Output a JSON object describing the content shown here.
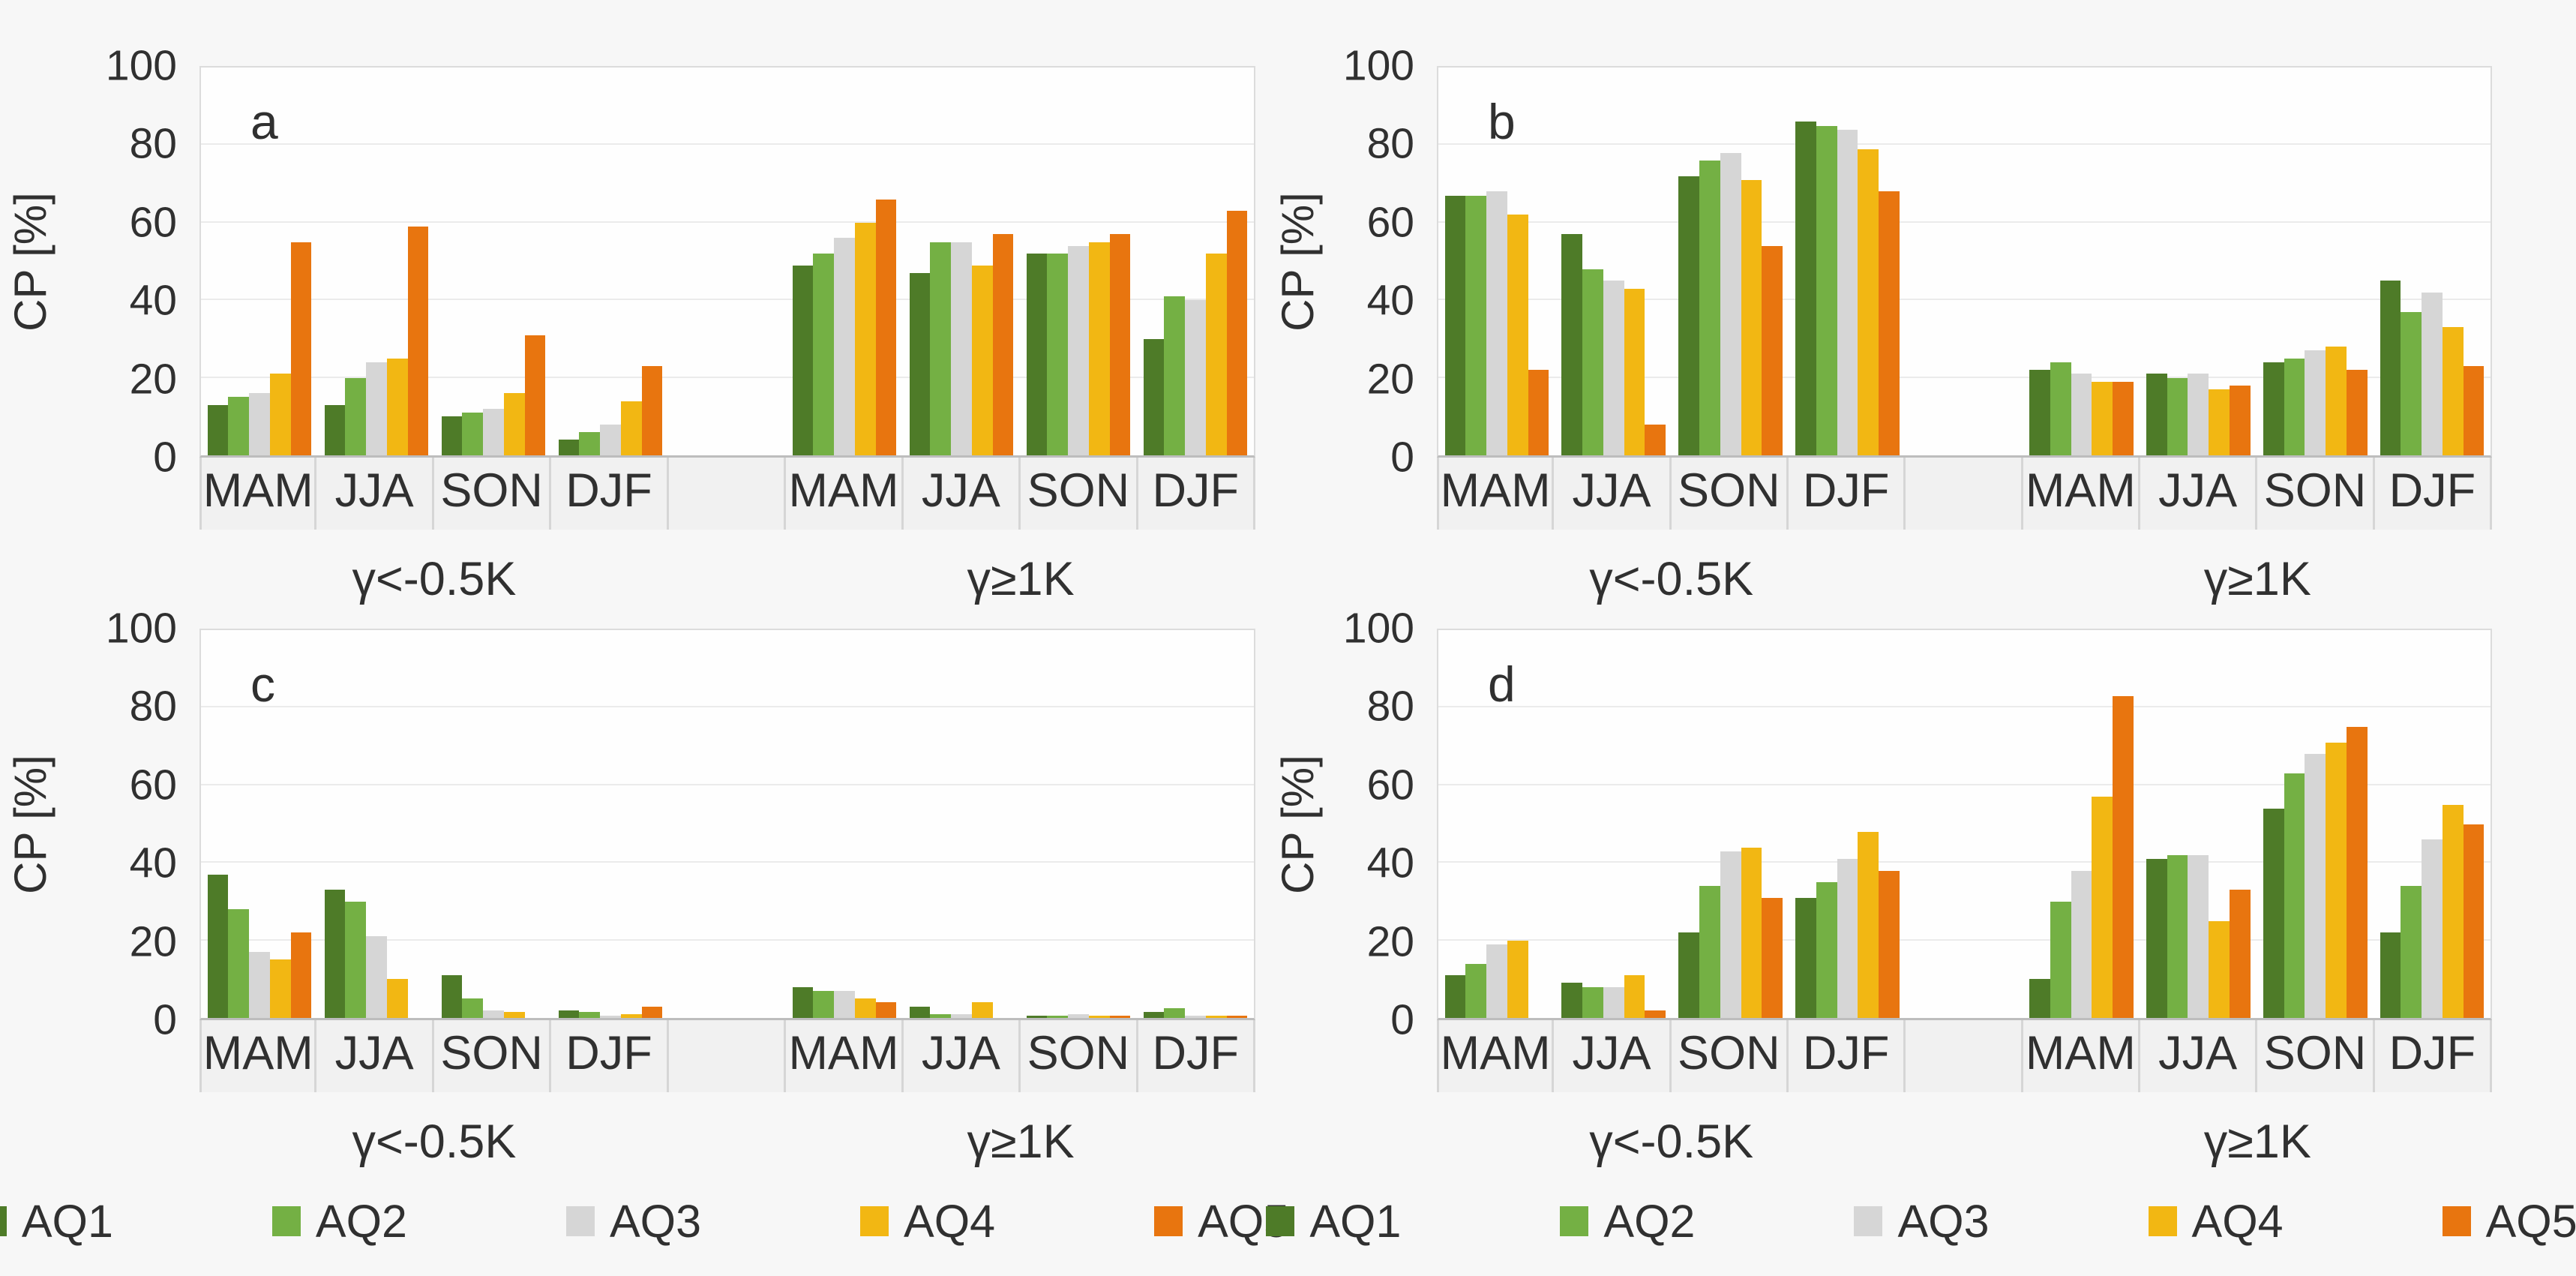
{
  "figure": {
    "y_axis_title": "CP [%]",
    "y_ticks": [
      0,
      20,
      40,
      60,
      80,
      100
    ],
    "ylim": [
      0,
      100
    ],
    "seasons": [
      "MAM",
      "JJA",
      "SON",
      "DJF"
    ],
    "conditions": [
      "γ<-0.5K",
      "γ≥1K"
    ],
    "series_names": [
      "AQ1",
      "AQ2",
      "AQ3",
      "AQ4",
      "AQ5"
    ],
    "series_colors": {
      "AQ1": "#4e7b28",
      "AQ2": "#74b044",
      "AQ3": "#d6d6d6",
      "AQ4": "#f2b713",
      "AQ5": "#e8750f"
    },
    "grid_color": "#ebebeb",
    "background": "#f7f7f7"
  },
  "legend": {
    "items": [
      {
        "label": "AQ1",
        "color": "#4e7b28"
      },
      {
        "label": "AQ2",
        "color": "#74b044"
      },
      {
        "label": "AQ3",
        "color": "#d6d6d6"
      },
      {
        "label": "AQ4",
        "color": "#f2b713"
      },
      {
        "label": "AQ5",
        "color": "#e8750f"
      }
    ]
  },
  "chart_data": [
    {
      "panel": "a",
      "type": "bar",
      "ylabel": "CP [%]",
      "ylim": [
        0,
        100
      ],
      "categories": [
        "MAM",
        "JJA",
        "SON",
        "DJF"
      ],
      "groups": [
        {
          "condition": "γ<-0.5K",
          "series": [
            {
              "name": "AQ1",
              "values": [
                13,
                13,
                10,
                4
              ]
            },
            {
              "name": "AQ2",
              "values": [
                15,
                20,
                11,
                6
              ]
            },
            {
              "name": "AQ3",
              "values": [
                16,
                24,
                12,
                8
              ]
            },
            {
              "name": "AQ4",
              "values": [
                21,
                25,
                16,
                14
              ]
            },
            {
              "name": "AQ5",
              "values": [
                55,
                59,
                31,
                23
              ]
            }
          ]
        },
        {
          "condition": "γ≥1K",
          "series": [
            {
              "name": "AQ1",
              "values": [
                49,
                47,
                52,
                30
              ]
            },
            {
              "name": "AQ2",
              "values": [
                52,
                55,
                52,
                41
              ]
            },
            {
              "name": "AQ3",
              "values": [
                56,
                55,
                54,
                40
              ]
            },
            {
              "name": "AQ4",
              "values": [
                60,
                49,
                55,
                52
              ]
            },
            {
              "name": "AQ5",
              "values": [
                66,
                57,
                57,
                63
              ]
            }
          ]
        }
      ]
    },
    {
      "panel": "b",
      "type": "bar",
      "ylabel": "CP [%]",
      "ylim": [
        0,
        100
      ],
      "categories": [
        "MAM",
        "JJA",
        "SON",
        "DJF"
      ],
      "groups": [
        {
          "condition": "γ<-0.5K",
          "series": [
            {
              "name": "AQ1",
              "values": [
                67,
                57,
                72,
                86
              ]
            },
            {
              "name": "AQ2",
              "values": [
                67,
                48,
                76,
                85
              ]
            },
            {
              "name": "AQ3",
              "values": [
                68,
                45,
                78,
                84
              ]
            },
            {
              "name": "AQ4",
              "values": [
                62,
                43,
                71,
                79
              ]
            },
            {
              "name": "AQ5",
              "values": [
                22,
                8,
                54,
                68
              ]
            }
          ]
        },
        {
          "condition": "γ≥1K",
          "series": [
            {
              "name": "AQ1",
              "values": [
                22,
                21,
                24,
                45
              ]
            },
            {
              "name": "AQ2",
              "values": [
                24,
                20,
                25,
                37
              ]
            },
            {
              "name": "AQ3",
              "values": [
                21,
                21,
                27,
                42
              ]
            },
            {
              "name": "AQ4",
              "values": [
                19,
                17,
                28,
                33
              ]
            },
            {
              "name": "AQ5",
              "values": [
                19,
                18,
                22,
                23
              ]
            }
          ]
        }
      ]
    },
    {
      "panel": "c",
      "type": "bar",
      "ylabel": "CP [%]",
      "ylim": [
        0,
        100
      ],
      "categories": [
        "MAM",
        "JJA",
        "SON",
        "DJF"
      ],
      "groups": [
        {
          "condition": "γ<-0.5K",
          "series": [
            {
              "name": "AQ1",
              "values": [
                37,
                33,
                11,
                2
              ]
            },
            {
              "name": "AQ2",
              "values": [
                28,
                30,
                5,
                1.5
              ]
            },
            {
              "name": "AQ3",
              "values": [
                17,
                21,
                2,
                0.5
              ]
            },
            {
              "name": "AQ4",
              "values": [
                15,
                10,
                1.5,
                1
              ]
            },
            {
              "name": "AQ5",
              "values": [
                22,
                0,
                0,
                3
              ]
            }
          ]
        },
        {
          "condition": "γ≥1K",
          "series": [
            {
              "name": "AQ1",
              "values": [
                8,
                3,
                0.5,
                1.5
              ]
            },
            {
              "name": "AQ2",
              "values": [
                7,
                1,
                0.5,
                2.5
              ]
            },
            {
              "name": "AQ3",
              "values": [
                7,
                1,
                1,
                0.5
              ]
            },
            {
              "name": "AQ4",
              "values": [
                5,
                4,
                0.5,
                0.5
              ]
            },
            {
              "name": "AQ5",
              "values": [
                4,
                0,
                0.5,
                0.5
              ]
            }
          ]
        }
      ]
    },
    {
      "panel": "d",
      "type": "bar",
      "ylabel": "CP [%]",
      "ylim": [
        0,
        100
      ],
      "categories": [
        "MAM",
        "JJA",
        "SON",
        "DJF"
      ],
      "groups": [
        {
          "condition": "γ<-0.5K",
          "series": [
            {
              "name": "AQ1",
              "values": [
                11,
                9,
                22,
                31
              ]
            },
            {
              "name": "AQ2",
              "values": [
                14,
                8,
                34,
                35
              ]
            },
            {
              "name": "AQ3",
              "values": [
                19,
                8,
                43,
                41
              ]
            },
            {
              "name": "AQ4",
              "values": [
                20,
                11,
                44,
                48
              ]
            },
            {
              "name": "AQ5",
              "values": [
                0,
                2,
                31,
                38
              ]
            }
          ]
        },
        {
          "condition": "γ≥1K",
          "series": [
            {
              "name": "AQ1",
              "values": [
                10,
                41,
                54,
                22
              ]
            },
            {
              "name": "AQ2",
              "values": [
                30,
                42,
                63,
                34
              ]
            },
            {
              "name": "AQ3",
              "values": [
                38,
                42,
                68,
                46
              ]
            },
            {
              "name": "AQ4",
              "values": [
                57,
                25,
                71,
                55
              ]
            },
            {
              "name": "AQ5",
              "values": [
                83,
                33,
                75,
                50
              ]
            }
          ]
        }
      ]
    }
  ]
}
